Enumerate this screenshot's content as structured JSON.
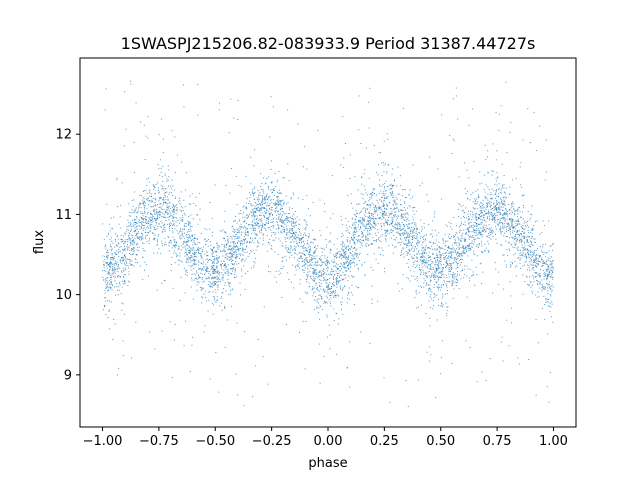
{
  "chart_data": {
    "type": "scatter",
    "title": "1SWASPJ215206.82-083933.9 Period 31387.44727s",
    "xlabel": "phase",
    "ylabel": "flux",
    "xlim": [
      -1.1,
      1.1
    ],
    "ylim": [
      8.35,
      12.95
    ],
    "x_ticks": [
      -1.0,
      -0.75,
      -0.5,
      -0.25,
      0.0,
      0.25,
      0.5,
      0.75,
      1.0
    ],
    "x_tick_labels": [
      "−1.00",
      "−0.75",
      "−0.50",
      "−0.25",
      "0.00",
      "0.25",
      "0.50",
      "0.75",
      "1.00"
    ],
    "y_ticks": [
      9,
      10,
      11,
      12
    ],
    "y_tick_labels": [
      "9",
      "10",
      "11",
      "12"
    ],
    "grid": false,
    "marker_color": "#1f77b4",
    "series": [
      {
        "phase": [
          -1.0,
          -0.95,
          -0.9,
          -0.85,
          -0.8,
          -0.75,
          -0.7,
          -0.65,
          -0.6,
          -0.55,
          -0.5,
          -0.45,
          -0.4,
          -0.35,
          -0.3,
          -0.25,
          -0.2,
          -0.15,
          -0.1,
          -0.05,
          0.0,
          0.05,
          0.1,
          0.15,
          0.2,
          0.25,
          0.3,
          0.35,
          0.4,
          0.45,
          0.5,
          0.55,
          0.6,
          0.65,
          0.7,
          0.75,
          0.8,
          0.85,
          0.9,
          0.95,
          1.0
        ],
        "flux_median": [
          10.2,
          10.35,
          10.55,
          10.8,
          10.98,
          11.05,
          11.0,
          10.8,
          10.55,
          10.35,
          10.3,
          10.4,
          10.6,
          10.85,
          11.0,
          11.05,
          10.95,
          10.75,
          10.5,
          10.3,
          10.15,
          10.3,
          10.55,
          10.8,
          10.98,
          11.05,
          11.0,
          10.8,
          10.55,
          10.35,
          10.3,
          10.4,
          10.6,
          10.85,
          11.0,
          11.05,
          10.95,
          10.75,
          10.5,
          10.3,
          10.2
        ],
        "flux_spread": 0.2,
        "outlier_range": [
          8.6,
          12.7
        ]
      }
    ]
  }
}
